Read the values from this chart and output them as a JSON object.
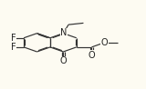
{
  "bg_color": "#fdfbf2",
  "bond_color": "#333333",
  "lw": 0.85,
  "fs": 7.0,
  "atom_color": "#222222",
  "xlim": [
    0.0,
    1.0
  ],
  "ylim": [
    0.0,
    1.0
  ],
  "fig_w": 1.6,
  "fig_h": 0.98
}
